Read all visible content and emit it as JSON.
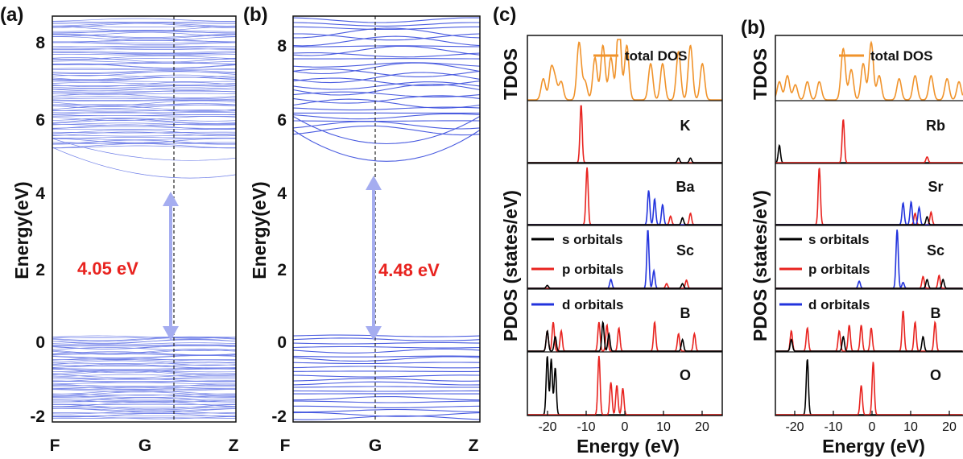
{
  "chart_data": [
    {
      "panel_label": "(a)",
      "type": "line",
      "chart_kind": "band structure",
      "ylabel": "Energy(eV)",
      "x_tick_labels": [
        "F",
        "G",
        "Z"
      ],
      "y_ticks": [
        8,
        6,
        4,
        2,
        0,
        -2
      ],
      "y_tick_labels": [
        "8",
        "6",
        "4",
        "2",
        "0",
        "-2"
      ],
      "ylim": [
        -2.2,
        8.2
      ],
      "grid": false,
      "line_color": "#6f7fe8",
      "arrow_color": "#a5adf0",
      "gap_label": "4.05 eV",
      "band_gap_ev": 4.05,
      "cbm_ev": 4.05,
      "vbm_ev": 0.0,
      "kpoint_marker_x": 0.75,
      "valence_band_range": [
        -2.1,
        0.0
      ],
      "conduction_band_range": [
        4.05,
        8.1
      ]
    },
    {
      "panel_label": "(b)",
      "type": "line",
      "chart_kind": "band structure",
      "ylabel": "Energy(eV)",
      "x_tick_labels": [
        "F",
        "G",
        "Z"
      ],
      "y_ticks": [
        8,
        6,
        4,
        2,
        0,
        -2
      ],
      "y_tick_labels": [
        "8",
        "6",
        "4",
        "2",
        "0",
        "-2"
      ],
      "ylim": [
        -2.2,
        8.2
      ],
      "grid": false,
      "line_color": "#4a5ce0",
      "arrow_color": "#a5adf0",
      "gap_label": "4.48 eV",
      "band_gap_ev": 4.48,
      "cbm_ev": 4.48,
      "vbm_ev": 0.0,
      "kpoint_marker_x": 0.5,
      "valence_band_range": [
        -2.1,
        0.0
      ],
      "conduction_band_range": [
        4.48,
        8.1
      ]
    },
    {
      "panel_label": "(c)",
      "type": "line",
      "chart_kind": "density of states",
      "xlabel": "Energy (eV)",
      "ylabel_top": "TDOS",
      "ylabel_bottom": "PDOS (states/eV)",
      "xlim": [
        -25,
        24
      ],
      "x_ticks": [
        -20,
        -10,
        0,
        10,
        20
      ],
      "x_tick_labels": [
        "-20",
        "-10",
        "0",
        "10",
        "20"
      ],
      "legend": [
        "total DOS",
        "s orbitals",
        "p orbitals",
        "d orbitals"
      ],
      "series_colors": {
        "total": "#f0932b",
        "s": "#000000",
        "p": "#e8231f",
        "d": "#2233dd"
      },
      "subpanels": [
        {
          "label": "",
          "peaks": {
            "total": [
              [
                -21,
                0.35
              ],
              [
                -19,
                0.5
              ],
              [
                -18,
                0.3
              ],
              [
                -16.5,
                0.3
              ],
              [
                -12,
                0.95
              ],
              [
                -10.5,
                0.3
              ],
              [
                -8,
                0.7
              ],
              [
                -6,
                0.9
              ],
              [
                -4,
                0.7
              ],
              [
                -2,
                1.3
              ],
              [
                0,
                0.9
              ],
              [
                6,
                0.6
              ],
              [
                9,
                0.6
              ],
              [
                13,
                0.8
              ],
              [
                16,
                0.9
              ],
              [
                19,
                0.6
              ]
            ]
          }
        },
        {
          "label": "K",
          "peaks": {
            "p": [
              [
                -11.5,
                1.0
              ]
            ],
            "s": [
              [
                13,
                0.08
              ],
              [
                16,
                0.08
              ]
            ]
          }
        },
        {
          "label": "Ba",
          "peaks": {
            "p": [
              [
                -10,
                1.0
              ],
              [
                11,
                0.15
              ],
              [
                16,
                0.2
              ]
            ],
            "d": [
              [
                5.5,
                0.6
              ],
              [
                7,
                0.45
              ],
              [
                9,
                0.35
              ]
            ],
            "s": [
              [
                14,
                0.12
              ]
            ]
          }
        },
        {
          "label": "Sc",
          "peaks": {
            "d": [
              [
                5.3,
                1.0
              ],
              [
                6.8,
                0.3
              ],
              [
                -4,
                0.15
              ]
            ],
            "p": [
              [
                10,
                0.08
              ],
              [
                15,
                0.14
              ]
            ],
            "s": [
              [
                -20,
                0.05
              ],
              [
                14,
                0.08
              ]
            ]
          }
        },
        {
          "label": "B",
          "peaks": {
            "p": [
              [
                -20,
                0.35
              ],
              [
                -18.5,
                0.5
              ],
              [
                -16.5,
                0.35
              ],
              [
                -7,
                0.5
              ],
              [
                -5,
                0.45
              ],
              [
                -2,
                0.4
              ],
              [
                7,
                0.5
              ],
              [
                13,
                0.3
              ],
              [
                17,
                0.3
              ]
            ],
            "s": [
              [
                -20,
                0.35
              ],
              [
                -18,
                0.25
              ],
              [
                -6,
                0.5
              ],
              [
                -4.5,
                0.3
              ],
              [
                14,
                0.2
              ]
            ]
          }
        },
        {
          "label": "O",
          "peaks": {
            "s": [
              [
                -20,
                1.0
              ],
              [
                -19,
                0.95
              ],
              [
                -18,
                0.8
              ]
            ],
            "p": [
              [
                -7,
                1.0
              ],
              [
                -4,
                0.55
              ],
              [
                -2.5,
                0.5
              ],
              [
                -1,
                0.45
              ]
            ]
          }
        }
      ]
    },
    {
      "panel_label": "(b)",
      "type": "line",
      "chart_kind": "density of states",
      "xlabel": "Energy (eV)",
      "ylabel_top": "TDOS",
      "ylabel_bottom": "PDOS (states/eV)",
      "xlim": [
        -25,
        22
      ],
      "x_ticks": [
        -20,
        -10,
        0,
        10,
        20
      ],
      "x_tick_labels": [
        "-20",
        "-10",
        "0",
        "10",
        "20"
      ],
      "legend": [
        "total DOS",
        "s orbitals",
        "p orbitals",
        "d orbitals"
      ],
      "series_colors": {
        "total": "#f0932b",
        "s": "#000000",
        "p": "#e8231f",
        "d": "#2233dd"
      },
      "subpanels": [
        {
          "label": "",
          "peaks": {
            "total": [
              [
                -24,
                0.3
              ],
              [
                -22,
                0.4
              ],
              [
                -20,
                0.25
              ],
              [
                -17,
                0.3
              ],
              [
                -14,
                0.3
              ],
              [
                -8,
                0.85
              ],
              [
                -6,
                0.5
              ],
              [
                -3,
                0.6
              ],
              [
                -1,
                0.95
              ],
              [
                1,
                0.4
              ],
              [
                6,
                0.35
              ],
              [
                10,
                0.4
              ],
              [
                14,
                0.4
              ],
              [
                18,
                0.35
              ],
              [
                21,
                0.3
              ]
            ]
          }
        },
        {
          "label": "Rb",
          "peaks": {
            "s": [
              [
                -24,
                0.3
              ]
            ],
            "p": [
              [
                -8,
                0.75
              ],
              [
                13,
                0.1
              ]
            ]
          }
        },
        {
          "label": "Sr",
          "peaks": {
            "p": [
              [
                -14,
                1.0
              ],
              [
                10,
                0.2
              ],
              [
                14,
                0.22
              ]
            ],
            "d": [
              [
                7,
                0.38
              ],
              [
                9,
                0.4
              ],
              [
                11,
                0.3
              ]
            ],
            "s": [
              [
                13,
                0.14
              ]
            ]
          }
        },
        {
          "label": "Sc",
          "peaks": {
            "d": [
              [
                5.5,
                1.0
              ],
              [
                -4,
                0.12
              ],
              [
                7,
                0.1
              ]
            ],
            "p": [
              [
                12,
                0.2
              ],
              [
                16,
                0.22
              ]
            ],
            "s": [
              [
                13,
                0.15
              ],
              [
                17,
                0.15
              ]
            ]
          }
        },
        {
          "label": "B",
          "peaks": {
            "p": [
              [
                -21,
                0.35
              ],
              [
                -17,
                0.4
              ],
              [
                -9,
                0.35
              ],
              [
                -6.5,
                0.45
              ],
              [
                -3.5,
                0.45
              ],
              [
                -1,
                0.4
              ],
              [
                7,
                0.7
              ],
              [
                10,
                0.5
              ],
              [
                15,
                0.5
              ]
            ],
            "s": [
              [
                -21,
                0.2
              ],
              [
                -8,
                0.25
              ],
              [
                12,
                0.25
              ]
            ]
          }
        },
        {
          "label": "O",
          "peaks": {
            "s": [
              [
                -17,
                0.95
              ]
            ],
            "p": [
              [
                -3.5,
                0.5
              ],
              [
                -0.5,
                0.9
              ]
            ]
          }
        }
      ]
    }
  ]
}
